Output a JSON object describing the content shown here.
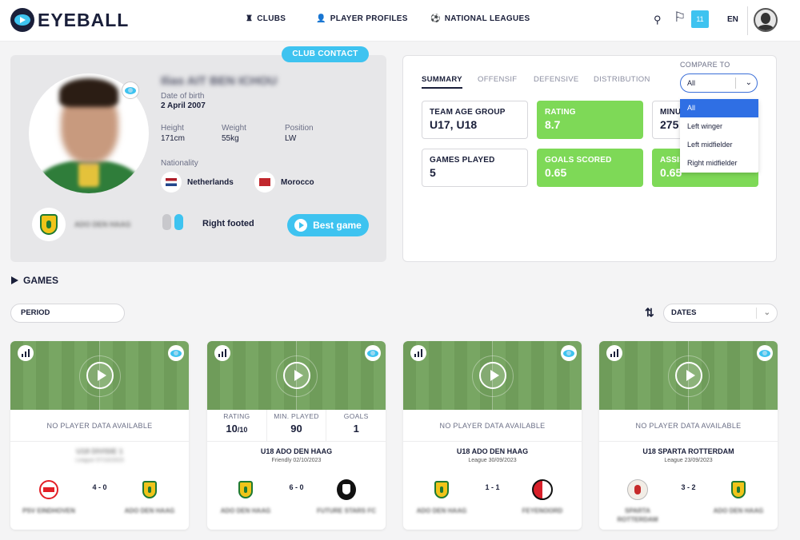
{
  "header": {
    "brand": "EYEBALL",
    "nav": [
      {
        "label": "CLUBS",
        "icon": "shield-icon"
      },
      {
        "label": "PLAYER PROFILES",
        "icon": "person-icon"
      },
      {
        "label": "NATIONAL LEAGUES",
        "icon": "football-icon"
      }
    ],
    "notifications_count": "11",
    "language": "EN"
  },
  "profile": {
    "club_contact_label": "CLUB CONTACT",
    "name": "Ilias AIT BEN ICHOU",
    "dob_label": "Date of birth",
    "dob": "2 April 2007",
    "height_label": "Height",
    "height": "171cm",
    "weight_label": "Weight",
    "weight": "55kg",
    "position_label": "Position",
    "position": "LW",
    "nationality_label": "Nationality",
    "nationalities": [
      "Netherlands",
      "Morocco"
    ],
    "club": "ADO DEN HAAG",
    "foot": "Right footed",
    "best_game_label": "Best game"
  },
  "stats": {
    "tabs": [
      "SUMMARY",
      "OFFENSIF",
      "DEFENSIVE",
      "DISTRIBUTION"
    ],
    "active_tab": "SUMMARY",
    "compare_label": "COMPARE TO",
    "compare_value": "All",
    "compare_options": [
      "All",
      "Left winger",
      "Left midfielder",
      "Right midfielder"
    ],
    "tiles": [
      {
        "label": "TEAM AGE GROUP",
        "value": "U17, U18",
        "highlight": false
      },
      {
        "label": "RATING",
        "value": "8.7",
        "highlight": true
      },
      {
        "label": "MINUTES",
        "value": "275",
        "highlight": false
      },
      {
        "label": "GAMES PLAYED",
        "value": "5",
        "highlight": false
      },
      {
        "label": "GOALS SCORED",
        "value": "0.65",
        "highlight": true
      },
      {
        "label": "ASSISTS",
        "value": "0.65",
        "highlight": true
      }
    ]
  },
  "games": {
    "title": "GAMES",
    "period_label": "PERIOD",
    "dates_label": "DATES",
    "no_data_text": "NO PLAYER DATA AVAILABLE",
    "cards": [
      {
        "has_data": false,
        "team": "U18 DIVISIE 1",
        "sub": "League 07/10/2023",
        "score": "4 - 0",
        "home": "PSV EINDHOVEN",
        "away": "ADO DEN HAAG",
        "home_logo": "psv-logo",
        "away_logo": "ado-den-haag-logo",
        "blur_title": true
      },
      {
        "has_data": true,
        "stats": [
          {
            "label": "RATING",
            "value": "10",
            "suffix": "/10"
          },
          {
            "label": "MIN. PLAYED",
            "value": "90",
            "suffix": ""
          },
          {
            "label": "GOALS",
            "value": "1",
            "suffix": ""
          }
        ],
        "team": "U18 ADO DEN HAAG",
        "sub": "Friendly 02/10/2023",
        "score": "6 - 0",
        "home": "ADO DEN HAAG",
        "away": "FUTURE STARS FC",
        "home_logo": "ado-den-haag-logo",
        "away_logo": "future-stars-logo",
        "blur_title": false
      },
      {
        "has_data": false,
        "team": "U18 ADO DEN HAAG",
        "sub": "League 30/09/2023",
        "score": "1 - 1",
        "home": "ADO DEN HAAG",
        "away": "FEYENOORD",
        "home_logo": "ado-den-haag-logo",
        "away_logo": "feyenoord-logo",
        "blur_title": false
      },
      {
        "has_data": false,
        "team": "U18 SPARTA ROTTERDAM",
        "sub": "League 23/09/2023",
        "score": "3 - 2",
        "home": "SPARTA ROTTERDAM",
        "away": "ADO DEN HAAG",
        "home_logo": "sparta-logo",
        "away_logo": "ado-den-haag-logo",
        "blur_title": false
      }
    ]
  }
}
